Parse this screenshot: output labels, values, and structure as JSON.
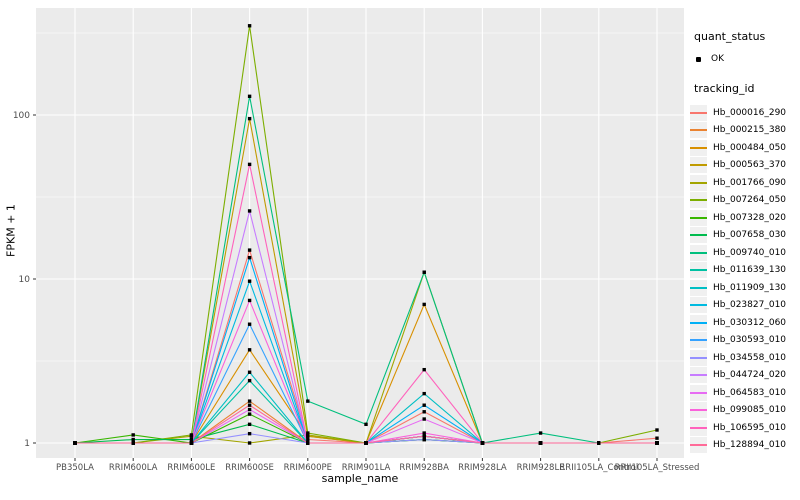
{
  "legend": {
    "quant_status_title": "quant_status",
    "quant_status_items": [
      "OK"
    ],
    "tracking_id_title": "tracking_id"
  },
  "chart_data": {
    "type": "line",
    "title": "",
    "xlabel": "sample_name",
    "ylabel": "FPKM + 1",
    "y_scale": "log10",
    "y_ticks": [
      1,
      10,
      100
    ],
    "ylim": [
      0.81,
      449
    ],
    "grid": "on",
    "legend_position": "right",
    "panel_bg": "#EBEBEB",
    "grid_color": "#FFFFFF",
    "point_color": "#000000",
    "tick_label_color": "#4D4D4D",
    "categories": [
      "PB350LA",
      "RRIM600LA",
      "RRIM600LE",
      "RRIM600SE",
      "RRIM600PE",
      "RRIM901LA",
      "RRIM928BA",
      "RRIM928LA",
      "RRIM928LE",
      "RRII105LA_Control",
      "RRII105LA_Stressed"
    ],
    "series": [
      {
        "name": "Hb_000016_290",
        "color": "#F8766D",
        "values": [
          1,
          1,
          1,
          15,
          1.05,
          1,
          1.55,
          1,
          1,
          1,
          1.07
        ]
      },
      {
        "name": "Hb_000215_380",
        "color": "#EA8331",
        "values": [
          1,
          1,
          1,
          1.8,
          1,
          1,
          1.1,
          1,
          1,
          1,
          1
        ]
      },
      {
        "name": "Hb_000484_050",
        "color": "#D89000",
        "values": [
          1,
          1,
          1,
          3.7,
          1.1,
          1,
          7,
          1,
          1,
          1,
          1
        ]
      },
      {
        "name": "Hb_000563_370",
        "color": "#C09B00",
        "values": [
          1,
          1,
          1,
          95,
          1.1,
          1,
          1.1,
          1,
          1,
          1,
          1
        ]
      },
      {
        "name": "Hb_001766_090",
        "color": "#A3A500",
        "values": [
          1,
          1,
          1.1,
          1,
          1.12,
          1,
          11,
          1,
          1,
          1,
          1
        ]
      },
      {
        "name": "Hb_007264_050",
        "color": "#7CAE00",
        "values": [
          1,
          1,
          1.12,
          350,
          1.15,
          1,
          1.1,
          1,
          1,
          1,
          1.2
        ]
      },
      {
        "name": "Hb_007328_020",
        "color": "#39B600",
        "values": [
          1,
          1.12,
          1,
          1.5,
          1,
          1,
          1.05,
          1,
          1,
          1,
          1
        ]
      },
      {
        "name": "Hb_007658_030",
        "color": "#00BB4E",
        "values": [
          1,
          1.05,
          1.05,
          1.3,
          1,
          1,
          1.05,
          1,
          1,
          1,
          1
        ]
      },
      {
        "name": "Hb_009740_010",
        "color": "#00BF7D",
        "values": [
          1,
          1,
          1,
          130,
          1.8,
          1.3,
          11,
          1,
          1.15,
          1,
          1
        ]
      },
      {
        "name": "Hb_011639_130",
        "color": "#00C1A3",
        "values": [
          1,
          1,
          1,
          2.4,
          1,
          1,
          1.1,
          1,
          1,
          1,
          1
        ]
      },
      {
        "name": "Hb_011909_130",
        "color": "#00BFC4",
        "values": [
          1,
          1,
          1,
          2.7,
          1,
          1,
          2.0,
          1,
          1,
          1,
          1
        ]
      },
      {
        "name": "Hb_023827_010",
        "color": "#00BAE0",
        "values": [
          1,
          1,
          1,
          9.7,
          1,
          1,
          1.1,
          1,
          1,
          1,
          1
        ]
      },
      {
        "name": "Hb_030312_060",
        "color": "#00B0F6",
        "values": [
          1,
          1,
          1,
          13.5,
          1,
          1,
          1.7,
          1,
          1,
          1,
          1
        ]
      },
      {
        "name": "Hb_030593_010",
        "color": "#35A2FF",
        "values": [
          1,
          1,
          1,
          5.3,
          1,
          1,
          1.1,
          1,
          1,
          1,
          1
        ]
      },
      {
        "name": "Hb_034558_010",
        "color": "#9590FF",
        "values": [
          1,
          1,
          1,
          1.14,
          1,
          1,
          1.05,
          1,
          1,
          1,
          1
        ]
      },
      {
        "name": "Hb_044724_020",
        "color": "#C77CFF",
        "values": [
          1,
          1,
          1,
          26,
          1,
          1,
          1.1,
          1,
          1,
          1,
          1
        ]
      },
      {
        "name": "Hb_064583_010",
        "color": "#E76BF3",
        "values": [
          1,
          1,
          1,
          1.6,
          1,
          1,
          1.4,
          1,
          1,
          1,
          1
        ]
      },
      {
        "name": "Hb_099085_010",
        "color": "#FA62DB",
        "values": [
          1,
          1,
          1,
          7.4,
          1,
          1,
          1.15,
          1,
          1,
          1,
          1
        ]
      },
      {
        "name": "Hb_106595_010",
        "color": "#FF62BC",
        "values": [
          1,
          1,
          1,
          50,
          1,
          1,
          2.8,
          1,
          1,
          1,
          1
        ]
      },
      {
        "name": "Hb_128894_010",
        "color": "#FF6A98",
        "values": [
          1,
          1,
          1,
          1.7,
          1,
          1,
          1.1,
          1,
          1,
          1,
          1
        ]
      }
    ]
  }
}
